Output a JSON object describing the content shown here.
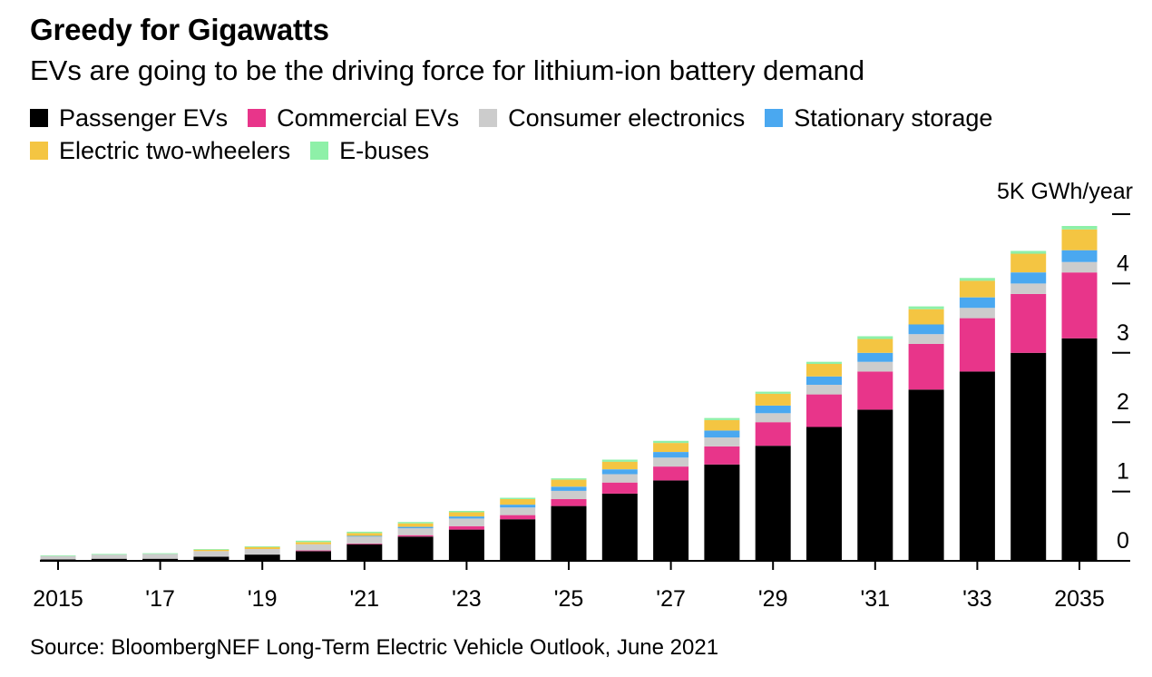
{
  "header": {
    "title": "Greedy for Gigawatts",
    "subtitle": "EVs are going to be the driving force for lithium-ion battery demand"
  },
  "legend": {
    "rows": [
      [
        {
          "label": "Passenger EVs",
          "color": "#000000"
        },
        {
          "label": "Commercial EVs",
          "color": "#e8358a"
        },
        {
          "label": "Consumer electronics",
          "color": "#cccccc"
        },
        {
          "label": "Stationary storage",
          "color": "#4aa8f0"
        }
      ],
      [
        {
          "label": "Electric two-wheelers",
          "color": "#f4c542"
        },
        {
          "label": "E-buses",
          "color": "#8ef0a8"
        }
      ]
    ]
  },
  "footer": {
    "source": "Source: BloombergNEF Long-Term Electric Vehicle Outlook, June 2021"
  },
  "chart_data": {
    "type": "bar",
    "stacked": true,
    "unit_label": "5K GWh/year",
    "categories": [
      "2015",
      "2016",
      "2017",
      "2018",
      "2019",
      "2020",
      "2021",
      "2022",
      "2023",
      "2024",
      "2025",
      "2026",
      "2027",
      "2028",
      "2029",
      "2030",
      "2031",
      "2032",
      "2033",
      "2034",
      "2035"
    ],
    "x_tick_labels": [
      "2015",
      "",
      "'17",
      "",
      "'19",
      "",
      "'21",
      "",
      "'23",
      "",
      "'25",
      "",
      "'27",
      "",
      "'29",
      "",
      "'31",
      "",
      "'33",
      "",
      "2035"
    ],
    "y_ticks": [
      0,
      1,
      2,
      3,
      4,
      5
    ],
    "y_tick_labels": [
      "0",
      "1",
      "2",
      "3",
      "4",
      ""
    ],
    "ylim": [
      0,
      5
    ],
    "grid": false,
    "legend_position": "top",
    "series": [
      {
        "name": "Passenger EVs",
        "color": "#000000",
        "values": [
          0.02,
          0.03,
          0.03,
          0.06,
          0.09,
          0.14,
          0.24,
          0.35,
          0.45,
          0.6,
          0.79,
          0.97,
          1.16,
          1.39,
          1.66,
          1.93,
          2.18,
          2.47,
          2.73,
          3.0,
          3.21
        ]
      },
      {
        "name": "Commercial EVs",
        "color": "#e8358a",
        "values": [
          0.0,
          0.0,
          0.0,
          0.0,
          0.0,
          0.01,
          0.01,
          0.02,
          0.05,
          0.06,
          0.1,
          0.16,
          0.2,
          0.26,
          0.34,
          0.47,
          0.55,
          0.66,
          0.77,
          0.85,
          0.95
        ]
      },
      {
        "name": "Consumer electronics",
        "color": "#cccccc",
        "values": [
          0.05,
          0.06,
          0.07,
          0.08,
          0.08,
          0.09,
          0.1,
          0.1,
          0.11,
          0.11,
          0.12,
          0.12,
          0.13,
          0.13,
          0.13,
          0.14,
          0.14,
          0.14,
          0.15,
          0.15,
          0.15
        ]
      },
      {
        "name": "Stationary storage",
        "color": "#4aa8f0",
        "values": [
          0.0,
          0.0,
          0.0,
          0.0,
          0.0,
          0.0,
          0.01,
          0.02,
          0.03,
          0.04,
          0.06,
          0.07,
          0.08,
          0.1,
          0.11,
          0.12,
          0.13,
          0.14,
          0.15,
          0.16,
          0.17
        ]
      },
      {
        "name": "Electric two-wheelers",
        "color": "#f4c542",
        "values": [
          0.0,
          0.0,
          0.0,
          0.02,
          0.03,
          0.03,
          0.04,
          0.05,
          0.06,
          0.08,
          0.1,
          0.11,
          0.13,
          0.15,
          0.17,
          0.18,
          0.2,
          0.22,
          0.24,
          0.27,
          0.3
        ]
      },
      {
        "name": "E-buses",
        "color": "#8ef0a8",
        "values": [
          0.01,
          0.01,
          0.01,
          0.01,
          0.01,
          0.02,
          0.02,
          0.02,
          0.02,
          0.02,
          0.02,
          0.03,
          0.03,
          0.03,
          0.03,
          0.03,
          0.04,
          0.04,
          0.04,
          0.04,
          0.05
        ]
      }
    ]
  }
}
